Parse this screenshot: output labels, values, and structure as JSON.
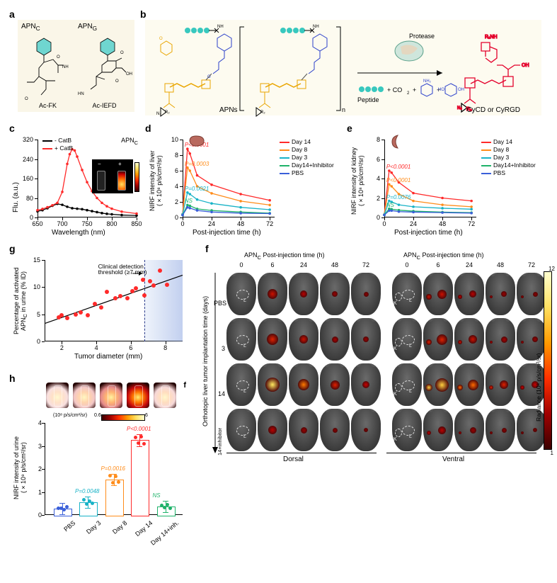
{
  "labels": {
    "a": "a",
    "b": "b",
    "c": "c",
    "d": "d",
    "e": "e",
    "f": "f",
    "g": "g",
    "h": "h"
  },
  "panel_a": {
    "left_title": "APN₉",
    "right_title": "APN_G",
    "left_name": "Ac-FK",
    "right_name": "Ac-IEFD",
    "title_left": "APN",
    "title_left_sub": "C",
    "title_right": "APN",
    "title_right_sub": "G"
  },
  "panel_b": {
    "left_caption": "APNs",
    "right_caption": "CyCD or CyRGD",
    "protease": "Protease",
    "byproduct": "Peptide",
    "plus_co2": "+ CO",
    "co2_sub": "2",
    "plus": " + "
  },
  "panel_c": {
    "type": "line",
    "title": "APN",
    "title_sub": "C",
    "ylabel": "Flu. (a.u.)",
    "xlabel": "Wavelength (nm)",
    "xlim": [
      650,
      850
    ],
    "ylim": [
      0,
      320
    ],
    "xticks": [
      650,
      700,
      750,
      800,
      850
    ],
    "yticks": [
      0,
      80,
      160,
      240,
      320
    ],
    "series": [
      {
        "name": "- CatB",
        "color": "#000000",
        "points": [
          [
            650,
            25
          ],
          [
            660,
            30
          ],
          [
            670,
            38
          ],
          [
            680,
            48
          ],
          [
            690,
            56
          ],
          [
            700,
            52
          ],
          [
            710,
            44
          ],
          [
            720,
            38
          ],
          [
            730,
            36
          ],
          [
            740,
            34
          ],
          [
            750,
            30
          ],
          [
            760,
            26
          ],
          [
            770,
            22
          ],
          [
            780,
            18
          ],
          [
            790,
            15
          ],
          [
            800,
            13
          ],
          [
            820,
            10
          ],
          [
            850,
            8
          ]
        ]
      },
      {
        "name": "+ CatB",
        "color": "#ff2a2a",
        "points": [
          [
            650,
            30
          ],
          [
            660,
            35
          ],
          [
            670,
            42
          ],
          [
            680,
            50
          ],
          [
            690,
            60
          ],
          [
            700,
            105
          ],
          [
            710,
            220
          ],
          [
            715,
            260
          ],
          [
            720,
            280
          ],
          [
            725,
            275
          ],
          [
            730,
            250
          ],
          [
            740,
            195
          ],
          [
            750,
            145
          ],
          [
            760,
            108
          ],
          [
            770,
            80
          ],
          [
            780,
            60
          ],
          [
            790,
            46
          ],
          [
            800,
            36
          ],
          [
            820,
            24
          ],
          [
            850,
            16
          ]
        ]
      }
    ]
  },
  "panel_d": {
    "type": "line",
    "ylabel": "NIRF intensity of liver",
    "ylabel2": "(×10⁸ p/s/cm²/sr)",
    "xlabel": "Post-injection time (h)",
    "xlim": [
      0,
      76
    ],
    "ylim": [
      0,
      10
    ],
    "xticks": [
      0,
      24,
      48,
      72
    ],
    "yticks": [
      0,
      2,
      4,
      6,
      8,
      10
    ],
    "organ": "liver",
    "series": [
      {
        "name": "Day 14",
        "color": "#ff2a2a",
        "pvalue": "P<0.0001",
        "points": [
          [
            0,
            0.4
          ],
          [
            4,
            8.8
          ],
          [
            6,
            8.2
          ],
          [
            12,
            5.4
          ],
          [
            24,
            4.2
          ],
          [
            48,
            3.0
          ],
          [
            72,
            2.2
          ]
        ]
      },
      {
        "name": "Day 8",
        "color": "#ff8c1a",
        "pvalue": "P=0.0003",
        "points": [
          [
            0,
            0.4
          ],
          [
            4,
            6.4
          ],
          [
            6,
            6.0
          ],
          [
            12,
            4.0
          ],
          [
            24,
            3.1
          ],
          [
            48,
            2.1
          ],
          [
            72,
            1.6
          ]
        ]
      },
      {
        "name": "Day 3",
        "color": "#19b3c7",
        "pvalue": "P=0.0021",
        "points": [
          [
            0,
            0.4
          ],
          [
            4,
            3.2
          ],
          [
            6,
            3.0
          ],
          [
            12,
            2.3
          ],
          [
            24,
            1.8
          ],
          [
            48,
            1.3
          ],
          [
            72,
            1.0
          ]
        ]
      },
      {
        "name": "Day14+Inhibitor",
        "color": "#1fb26a",
        "pvalue": "NS",
        "points": [
          [
            0,
            0.3
          ],
          [
            4,
            1.6
          ],
          [
            6,
            1.5
          ],
          [
            12,
            1.1
          ],
          [
            24,
            0.9
          ],
          [
            48,
            0.7
          ],
          [
            72,
            0.55
          ]
        ]
      },
      {
        "name": "PBS",
        "color": "#3a5fd9",
        "pvalue": "",
        "points": [
          [
            0,
            0.3
          ],
          [
            4,
            1.3
          ],
          [
            6,
            1.2
          ],
          [
            12,
            0.9
          ],
          [
            24,
            0.7
          ],
          [
            48,
            0.55
          ],
          [
            72,
            0.5
          ]
        ]
      }
    ]
  },
  "panel_e": {
    "type": "line",
    "ylabel": "NIRF intensity of kidney",
    "ylabel2": "(×10⁸ p/s/cm²/sr)",
    "xlabel": "Post-injection time (h)",
    "xlim": [
      0,
      76
    ],
    "ylim": [
      0,
      8
    ],
    "xticks": [
      0,
      24,
      48,
      72
    ],
    "yticks": [
      0,
      2,
      4,
      6,
      8
    ],
    "organ": "kidney",
    "series": [
      {
        "name": "Day 14",
        "color": "#ff2a2a",
        "pvalue": "P<0.0001",
        "points": [
          [
            0,
            0.3
          ],
          [
            4,
            4.8
          ],
          [
            6,
            4.6
          ],
          [
            12,
            3.6
          ],
          [
            24,
            2.5
          ],
          [
            48,
            2.0
          ],
          [
            72,
            1.7
          ]
        ]
      },
      {
        "name": "Day 8",
        "color": "#ff8c1a",
        "pvalue": "P<0.0001",
        "points": [
          [
            0,
            0.3
          ],
          [
            4,
            3.4
          ],
          [
            6,
            3.2
          ],
          [
            12,
            2.4
          ],
          [
            24,
            1.7
          ],
          [
            48,
            1.3
          ],
          [
            72,
            1.1
          ]
        ]
      },
      {
        "name": "Day 3",
        "color": "#19b3c7",
        "pvalue": "P=0.0076",
        "points": [
          [
            0,
            0.3
          ],
          [
            4,
            1.7
          ],
          [
            6,
            1.6
          ],
          [
            12,
            1.3
          ],
          [
            24,
            1.1
          ],
          [
            48,
            0.95
          ],
          [
            72,
            0.85
          ]
        ]
      },
      {
        "name": "Day14+Inhibitor",
        "color": "#1fb26a",
        "pvalue": "NS",
        "points": [
          [
            0,
            0.25
          ],
          [
            4,
            0.9
          ],
          [
            6,
            0.85
          ],
          [
            12,
            0.75
          ],
          [
            24,
            0.65
          ],
          [
            48,
            0.55
          ],
          [
            72,
            0.5
          ]
        ]
      },
      {
        "name": "PBS",
        "color": "#3a5fd9",
        "pvalue": "",
        "points": [
          [
            0,
            0.25
          ],
          [
            4,
            0.7
          ],
          [
            6,
            0.7
          ],
          [
            12,
            0.6
          ],
          [
            24,
            0.55
          ],
          [
            48,
            0.5
          ],
          [
            72,
            0.45
          ]
        ]
      }
    ]
  },
  "panel_f": {
    "header_left": "APN",
    "header_left_sub": "C",
    "header_text": " Post-injection time (h)",
    "timepoints": [
      "0",
      "6",
      "24",
      "48",
      "72"
    ],
    "rows": [
      "PBS",
      "3",
      "14",
      "14+inhibitor"
    ],
    "row_axis": "Orthotopic liver tumor implantation time (days)",
    "dorsal": "Dorsal",
    "ventral": "Ventral",
    "colorbar_label": "Radiance (10⁸ p/s/cm²/sr)",
    "colorbar_max": "12",
    "colorbar_min": "1",
    "L": "L",
    "K": "K",
    "signals": {
      "dorsal": [
        [
          {
            "s": 0,
            "c": "#000"
          },
          {
            "s": 14,
            "c": "#c10"
          },
          {
            "s": 10,
            "c": "#b00"
          },
          {
            "s": 8,
            "c": "#900"
          },
          {
            "s": 7,
            "c": "#800"
          }
        ],
        [
          {
            "s": 0,
            "c": "#000"
          },
          {
            "s": 16,
            "c": "#d20"
          },
          {
            "s": 12,
            "c": "#c10"
          },
          {
            "s": 9,
            "c": "#a00"
          },
          {
            "s": 8,
            "c": "#900"
          }
        ],
        [
          {
            "s": 0,
            "c": "#000"
          },
          {
            "s": 20,
            "c": "#ffea60"
          },
          {
            "s": 16,
            "c": "#ff7a00"
          },
          {
            "s": 13,
            "c": "#e02000"
          },
          {
            "s": 10,
            "c": "#c00"
          }
        ],
        [
          {
            "s": 0,
            "c": "#000"
          },
          {
            "s": 12,
            "c": "#b00"
          },
          {
            "s": 9,
            "c": "#900"
          },
          {
            "s": 7,
            "c": "#800"
          },
          {
            "s": 6,
            "c": "#700"
          }
        ]
      ],
      "ventral": [
        [
          {
            "s": 0,
            "c": "#000"
          },
          {
            "s": 13,
            "c": "#c10"
          },
          {
            "s": 10,
            "c": "#b00"
          },
          {
            "s": 8,
            "c": "#900"
          },
          {
            "s": 7,
            "c": "#800"
          }
        ],
        [
          {
            "s": 0,
            "c": "#000"
          },
          {
            "s": 15,
            "c": "#d20"
          },
          {
            "s": 12,
            "c": "#c10"
          },
          {
            "s": 9,
            "c": "#a00"
          },
          {
            "s": 8,
            "c": "#900"
          }
        ],
        [
          {
            "s": 0,
            "c": "#000"
          },
          {
            "s": 19,
            "c": "#ffd040"
          },
          {
            "s": 15,
            "c": "#ff6a00"
          },
          {
            "s": 12,
            "c": "#e02000"
          },
          {
            "s": 10,
            "c": "#c00"
          }
        ],
        [
          {
            "s": 0,
            "c": "#000"
          },
          {
            "s": 11,
            "c": "#b00"
          },
          {
            "s": 9,
            "c": "#900"
          },
          {
            "s": 7,
            "c": "#800"
          },
          {
            "s": 6,
            "c": "#700"
          }
        ]
      ]
    }
  },
  "panel_g": {
    "type": "scatter",
    "ylabel": "Percentage of activated",
    "ylabel2": "APN",
    "ylabel2_sub": "C",
    "ylabel2_rest": " in urine (% ID)",
    "xlabel": "Tumor diameter (mm)",
    "xlim": [
      1,
      9
    ],
    "ylim": [
      0,
      15
    ],
    "xticks": [
      2,
      4,
      6,
      8
    ],
    "yticks": [
      0,
      5,
      10,
      15
    ],
    "threshold_x": 6.8,
    "threshold_label": "Clinical detection",
    "threshold_label2": "threshold (≥7 mm)",
    "fit": [
      [
        1,
        3.3
      ],
      [
        9,
        12.2
      ]
    ],
    "points": [
      [
        1.8,
        4.5
      ],
      [
        2.0,
        4.8
      ],
      [
        2.3,
        4.3
      ],
      [
        2.8,
        5.0
      ],
      [
        3.1,
        5.4
      ],
      [
        3.5,
        4.8
      ],
      [
        3.9,
        6.9
      ],
      [
        4.3,
        6.2
      ],
      [
        4.6,
        9.1
      ],
      [
        5.1,
        8.0
      ],
      [
        5.4,
        8.3
      ],
      [
        5.8,
        8.0
      ],
      [
        6.1,
        9.2
      ],
      [
        6.3,
        9.8
      ],
      [
        6.7,
        11.4
      ],
      [
        6.8,
        8.5
      ],
      [
        7.1,
        11.1
      ],
      [
        7.3,
        10.3
      ],
      [
        7.7,
        13.1
      ],
      [
        8.1,
        10.5
      ]
    ],
    "point_color": "#ff2a2a"
  },
  "panel_h": {
    "type": "bar",
    "ylabel": "NIRF intensity of urine",
    "ylabel2": "(×10⁹ p/s/cm²/sr)",
    "ylim": [
      0,
      4
    ],
    "yticks": [
      0,
      1,
      2,
      3,
      4
    ],
    "colorbar_unit": "(10⁸ p/s/cm²/sr)",
    "colorbar_min": "0.6",
    "colorbar_max": "6",
    "categories": [
      {
        "name": "PBS",
        "value": 0.28,
        "color": "#3a5fd9",
        "pvalue": ""
      },
      {
        "name": "Day 3",
        "value": 0.55,
        "color": "#19b3c7",
        "pvalue": "P=0.0048"
      },
      {
        "name": "Day 8",
        "value": 1.55,
        "color": "#ff8c1a",
        "pvalue": "P=0.0016"
      },
      {
        "name": "Day 14",
        "value": 3.25,
        "color": "#ff2a2a",
        "pvalue": "P<0.0001"
      },
      {
        "name": "Day 14+inh.",
        "value": 0.38,
        "color": "#1fb26a",
        "pvalue": "NS"
      }
    ],
    "err": 0.25,
    "urine_intensity": [
      0.12,
      0.22,
      0.45,
      0.95,
      0.15
    ],
    "panel_tag": "f"
  }
}
